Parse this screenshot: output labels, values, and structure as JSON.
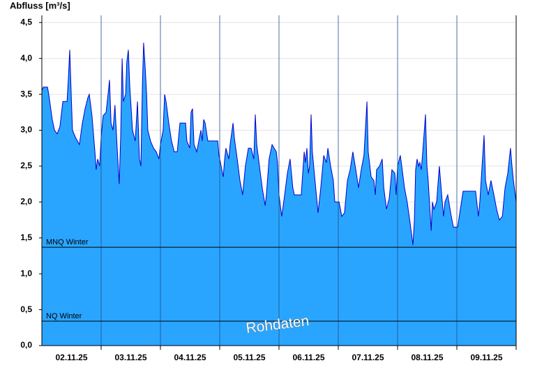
{
  "chart_data": {
    "type": "area",
    "title": "Abfluss [m³/s]",
    "watermark": "Rohdaten",
    "categories": [
      "02.11.25",
      "03.11.25",
      "04.11.25",
      "05.11.25",
      "06.11.25",
      "07.11.25",
      "08.11.25",
      "09.11.25"
    ],
    "x": [
      0,
      0.6,
      2.3,
      2.8,
      4.2,
      5.1,
      6.2,
      7.3,
      8.5,
      10.2,
      10.7,
      11.3,
      11.9,
      12.4,
      13.6,
      15.2,
      16.4,
      17.5,
      18.6,
      19.2,
      20.3,
      21.5,
      22.0,
      22.6,
      23.4,
      24.0,
      24.8,
      26.0,
      26.8,
      27.4,
      28.0,
      28.8,
      29.6,
      30.5,
      31.3,
      31.9,
      32.5,
      33.0,
      33.9,
      34.4,
      35.0,
      35.6,
      36.7,
      37.8,
      38.7,
      39.5,
      40.1,
      40.7,
      41.2,
      41.8,
      42.4,
      42.9,
      44.0,
      45.2,
      46.3,
      47.4,
      48.0,
      49.1,
      49.7,
      50.3,
      51.4,
      52.5,
      53.6,
      54.8,
      55.9,
      58.2,
      58.7,
      59.9,
      60.4,
      61.0,
      61.6,
      62.7,
      63.8,
      64.4,
      64.9,
      65.5,
      66.1,
      67.2,
      71.2,
      71.7,
      72.3,
      73.4,
      74.0,
      74.5,
      75.7,
      76.2,
      76.8,
      77.4,
      77.9,
      79.1,
      80.2,
      81.3,
      82.4,
      83.6,
      84.7,
      85.8,
      86.4,
      87.0,
      88.1,
      89.2,
      90.4,
      90.9,
      92.0,
      93.2,
      94.9,
      95.4,
      96.0,
      97.1,
      98.3,
      99.4,
      100.5,
      101.6,
      102.2,
      105.0,
      105.6,
      106.2,
      106.7,
      107.3,
      107.9,
      108.4,
      109.0,
      109.5,
      110.7,
      111.8,
      112.9,
      114.1,
      115.2,
      115.8,
      116.9,
      118.0,
      118.6,
      119.7,
      120.3,
      121.4,
      122.5,
      123.7,
      124.8,
      125.9,
      127.1,
      128.2,
      129.3,
      130.4,
      131.6,
      132.1,
      133.3,
      134.4,
      135.0,
      135.5,
      136.7,
      137.8,
      138.4,
      139.5,
      140.6,
      141.7,
      142.9,
      143.4,
      144.0,
      145.1,
      145.7,
      146.8,
      147.9,
      149.1,
      150.2,
      150.8,
      151.3,
      151.9,
      152.5,
      153.0,
      153.6,
      154.2,
      155.3,
      155.9,
      156.4,
      157.6,
      158.1,
      158.7,
      159.8,
      160.9,
      162.1,
      162.6,
      163.2,
      164.3,
      165.5,
      166.6,
      168.3,
      169.4,
      170.5,
      172.2,
      175.6,
      176.7,
      177.3,
      178.4,
      179.0,
      179.6,
      180.7,
      181.8,
      183.0,
      184.1,
      185.2,
      186.4,
      187.5,
      188.6,
      189.7,
      190.3,
      190.9,
      192.0
    ],
    "values": [
      3.55,
      3.6,
      3.6,
      3.5,
      3.15,
      3.0,
      2.95,
      3.05,
      3.4,
      3.4,
      3.7,
      4.12,
      3.5,
      3.0,
      2.9,
      2.8,
      3.1,
      3.3,
      3.45,
      3.5,
      3.2,
      2.7,
      2.45,
      2.6,
      2.5,
      2.9,
      3.2,
      3.25,
      3.5,
      3.7,
      3.1,
      3.0,
      3.35,
      2.75,
      2.25,
      2.9,
      4.0,
      3.4,
      3.5,
      3.95,
      4.12,
      3.6,
      3.0,
      2.85,
      3.4,
      2.6,
      2.5,
      3.6,
      4.22,
      3.9,
      3.5,
      3.0,
      2.85,
      2.75,
      2.7,
      2.6,
      2.8,
      3.0,
      3.5,
      3.4,
      3.1,
      2.85,
      2.7,
      2.7,
      3.1,
      3.1,
      2.85,
      2.75,
      3.25,
      3.3,
      2.8,
      2.7,
      2.9,
      3.0,
      2.85,
      3.15,
      3.1,
      2.85,
      2.85,
      2.65,
      2.55,
      2.35,
      2.6,
      2.75,
      2.6,
      2.8,
      2.95,
      3.1,
      2.9,
      2.6,
      2.3,
      2.1,
      2.5,
      2.75,
      2.75,
      2.6,
      3.22,
      2.8,
      2.5,
      2.2,
      1.95,
      2.1,
      2.6,
      2.8,
      2.7,
      2.55,
      2.1,
      1.8,
      2.1,
      2.4,
      2.6,
      2.2,
      2.1,
      2.1,
      2.4,
      2.7,
      2.55,
      2.75,
      2.4,
      2.5,
      3.22,
      2.7,
      2.25,
      1.85,
      2.2,
      2.65,
      2.55,
      2.75,
      2.5,
      2.3,
      2.0,
      2.0,
      2.0,
      1.8,
      1.85,
      2.3,
      2.45,
      2.7,
      2.45,
      2.2,
      2.45,
      2.65,
      3.4,
      2.7,
      2.35,
      2.3,
      2.1,
      2.45,
      2.5,
      2.6,
      2.2,
      1.9,
      2.05,
      2.45,
      2.4,
      2.1,
      2.5,
      2.65,
      2.5,
      2.2,
      2.0,
      1.7,
      1.4,
      1.75,
      2.45,
      2.6,
      2.5,
      2.55,
      2.45,
      2.7,
      3.22,
      2.5,
      2.3,
      1.6,
      2.0,
      1.9,
      2.0,
      2.5,
      2.0,
      1.8,
      2.0,
      2.1,
      1.85,
      1.65,
      1.65,
      1.9,
      2.15,
      2.15,
      2.15,
      1.8,
      2.0,
      2.6,
      2.93,
      2.3,
      2.1,
      2.3,
      2.1,
      1.9,
      1.75,
      1.8,
      2.2,
      2.4,
      2.75,
      2.5,
      2.3,
      2.0
    ],
    "color": "#2aa5ff",
    "line_color": "#0000cc",
    "xlim": [
      0,
      192
    ],
    "ylim": [
      0,
      4.6
    ],
    "yticks": [
      {
        "value": 0,
        "label": "0,0"
      },
      {
        "value": 0.5,
        "label": "0,5"
      },
      {
        "value": 1,
        "label": "1,0"
      },
      {
        "value": 1.5,
        "label": "1,5"
      },
      {
        "value": 2,
        "label": "2,0"
      },
      {
        "value": 2.5,
        "label": "2,5"
      },
      {
        "value": 3,
        "label": "3,0"
      },
      {
        "value": 3.5,
        "label": "3,5"
      },
      {
        "value": 4,
        "label": "4,0"
      },
      {
        "value": 4.5,
        "label": "4,5"
      }
    ],
    "grid": true,
    "reference_lines": [
      {
        "name": "MNQ Winter",
        "value": 1.37
      },
      {
        "name": "NQ Winter",
        "value": 0.34
      }
    ]
  }
}
